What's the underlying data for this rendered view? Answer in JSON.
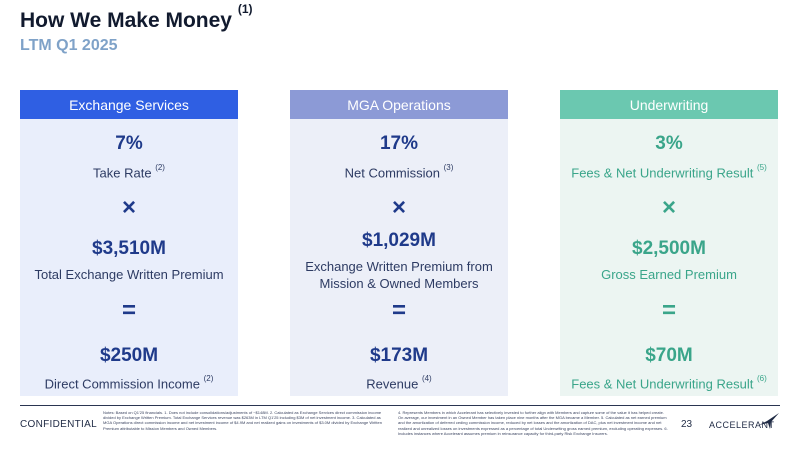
{
  "title": "How We Make Money",
  "title_note": "(1)",
  "subtitle": "LTM Q1 2025",
  "columns": [
    {
      "header": "Exchange Services",
      "metric1": "7%",
      "label1": "Take Rate",
      "label1_note": "(2)",
      "op1": "×",
      "metric2": "$3,510M",
      "label2_line1": "Total Exchange Written Premium",
      "label2_line2": "",
      "op2": "=",
      "metric3": "$250M",
      "label3": "Direct Commission Income",
      "label3_note": "(2)"
    },
    {
      "header": "MGA Operations",
      "metric1": "17%",
      "label1": "Net Commission",
      "label1_note": "(3)",
      "op1": "×",
      "metric2": "$1,029M",
      "label2_line1": "Exchange Written Premium from",
      "label2_line2": "Mission & Owned Members",
      "op2": "=",
      "metric3": "$173M",
      "label3": "Revenue",
      "label3_note": "(4)"
    },
    {
      "header": "Underwriting",
      "metric1": "3%",
      "label1": "Fees & Net Underwriting Result",
      "label1_note": "(5)",
      "op1": "×",
      "metric2": "$2,500M",
      "label2_line1": "Gross Earned Premium",
      "label2_line2": "",
      "op2": "=",
      "metric3": "$70M",
      "label3": "Fees & Net Underwriting Result",
      "label3_note": "(6)"
    }
  ],
  "colors": {
    "exchange_header": "#2f5fe3",
    "mga_header": "#8c9ad6",
    "underwriting_header": "#6bc8b0",
    "underwriting_text": "#3aa58a",
    "primary_text": "#1f3a8a"
  },
  "footer": {
    "confidential": "CONFIDENTIAL",
    "page_number": "23",
    "brand": "ACCELERANT",
    "brand_icon": "bird-logo-icon",
    "notes_left": "Notes: Based on Q1'25 financials. 1. Does not include consolidations/adjustments of ~$148M. 2. Calculated as Exchange Services direct commission income divided by Exchange Written Premium. Total Exchange Services revenue was $263M in LTM Q1'25 including $3M of net investment income. 3. Calculated as MGA Operations direct commission income and net investment income of $4.9M and net realized gains on investments of $3.0M divided by Exchange Written Premium attributable to Mission Members and Owned Members.",
    "notes_right": "4. Represents Members in which Accelerant has selectively invested to further align with Members and capture some of the value it has helped create. On average, our investment in an Owned Member has taken place nine months after the MGA became a Member. 5. Calculated as net earned premium and the amortization of deferred ceding commission income, reduced by net losses and the amortization of DAC, plus net investment income and net realized and unrealized losses on investments expressed as a percentage of total Underwriting gross earned premium, excluding operating expenses. 6. Includes instances where Accelerant assumes premium in reinsurance capacity for third-party Risk Exchange Insurers."
  }
}
